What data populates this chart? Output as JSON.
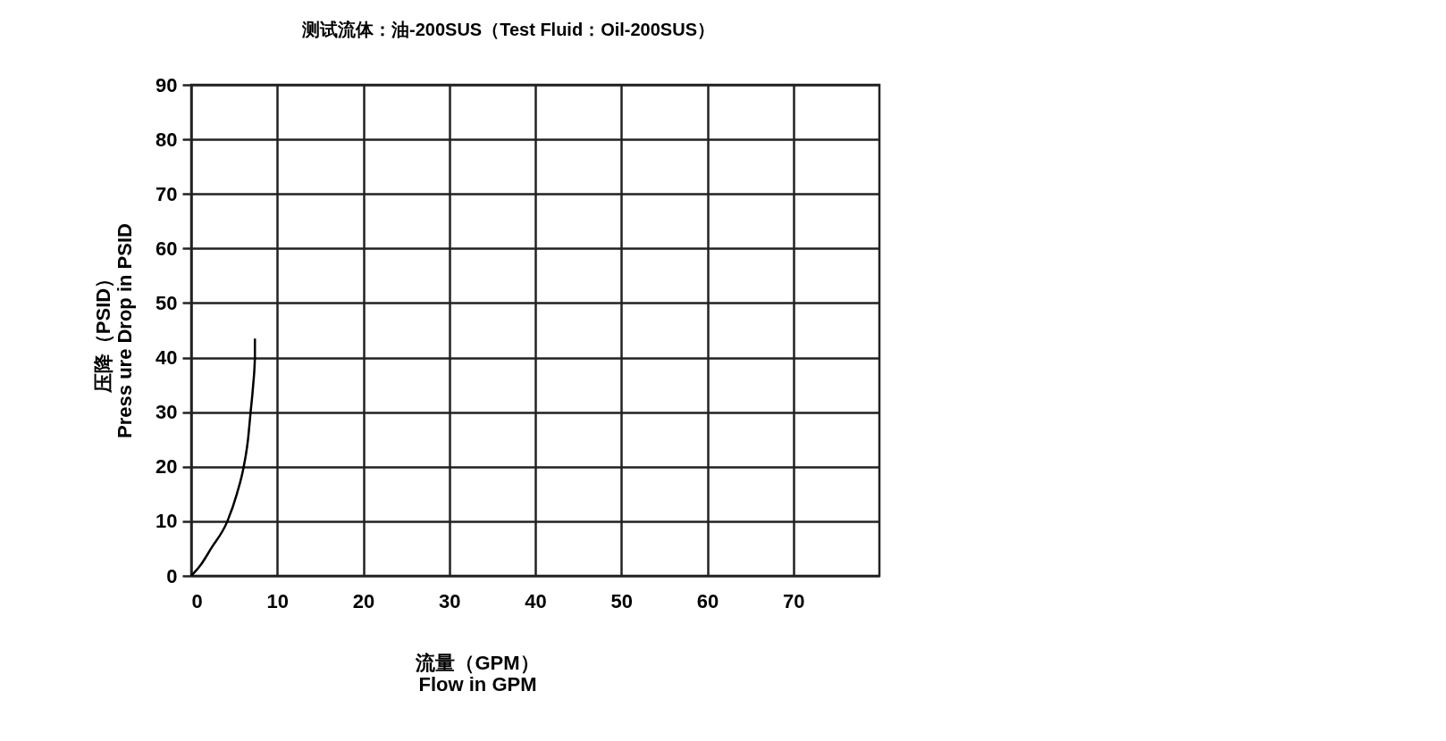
{
  "chart_data": {
    "type": "line",
    "title": "测试流体：油-200SUS（Test Fluid：Oil-200SUS）",
    "xlabel": "流量（GPM）\nFlow in GPM",
    "ylabel": "压降（PSID）\nPress ure Drop in PSID",
    "x": [
      0,
      1.1,
      2.3,
      4.2,
      5.3,
      6.1,
      6.6,
      6.9,
      7.2,
      7.4,
      7.4
    ],
    "series": [
      {
        "color": "#000000",
        "values": [
          0,
          2,
          5,
          10,
          15,
          20,
          25,
          30,
          35,
          40,
          43.5
        ]
      }
    ],
    "xlim": [
      0,
      80
    ],
    "ylim": [
      0,
      90
    ],
    "xticks": [
      0,
      10,
      20,
      30,
      40,
      50,
      60,
      70
    ],
    "yticks": [
      0,
      10,
      20,
      30,
      40,
      50,
      60,
      70,
      80,
      90
    ],
    "grid": true
  }
}
